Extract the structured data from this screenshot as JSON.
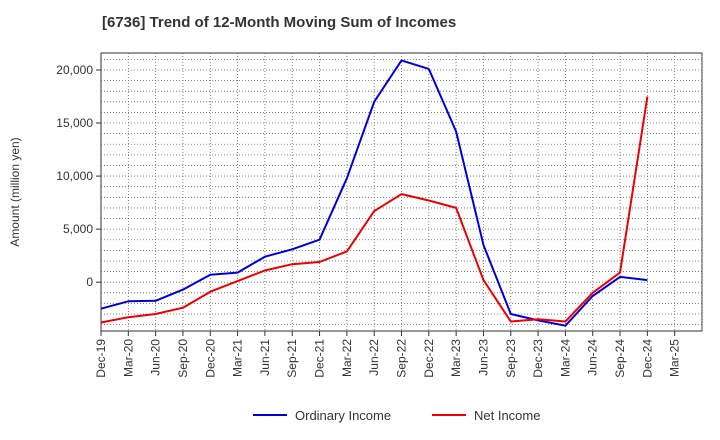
{
  "chart_data": {
    "type": "line",
    "title": "[6736]  Trend of 12-Month Moving Sum of Incomes",
    "ylabel": "Amount (million yen)",
    "xlabel": "",
    "categories": [
      "Dec-19",
      "Mar-20",
      "Jun-20",
      "Sep-20",
      "Dec-20",
      "Mar-21",
      "Jun-21",
      "Sep-21",
      "Dec-21",
      "Mar-22",
      "Jun-22",
      "Sep-22",
      "Dec-22",
      "Mar-23",
      "Jun-23",
      "Sep-23",
      "Dec-23",
      "Mar-24",
      "Jun-24",
      "Sep-24",
      "Dec-24",
      "Mar-25"
    ],
    "ylim": [
      -4600,
      21600
    ],
    "yticks": [
      0,
      5000,
      10000,
      15000,
      20000
    ],
    "ytick_labels": [
      "0",
      "5,000",
      "10,000",
      "15,000",
      "20,000"
    ],
    "grid": true,
    "legend_position": "bottom",
    "series": [
      {
        "name": "Ordinary Income",
        "color": "#0000dd",
        "values": [
          -2500,
          -1800,
          -1750,
          -700,
          700,
          900,
          2400,
          3100,
          4000,
          9800,
          17000,
          20900,
          20100,
          14200,
          3500,
          -3000,
          -3600,
          -4100,
          -1300,
          500,
          200,
          null
        ]
      },
      {
        "name": "Net Income",
        "color": "#ee0000",
        "values": [
          -3800,
          -3300,
          -3000,
          -2400,
          -900,
          100,
          1100,
          1700,
          1900,
          2900,
          6700,
          8300,
          7700,
          7000,
          200,
          -3700,
          -3500,
          -3700,
          -1000,
          900,
          17500,
          null
        ]
      }
    ]
  }
}
